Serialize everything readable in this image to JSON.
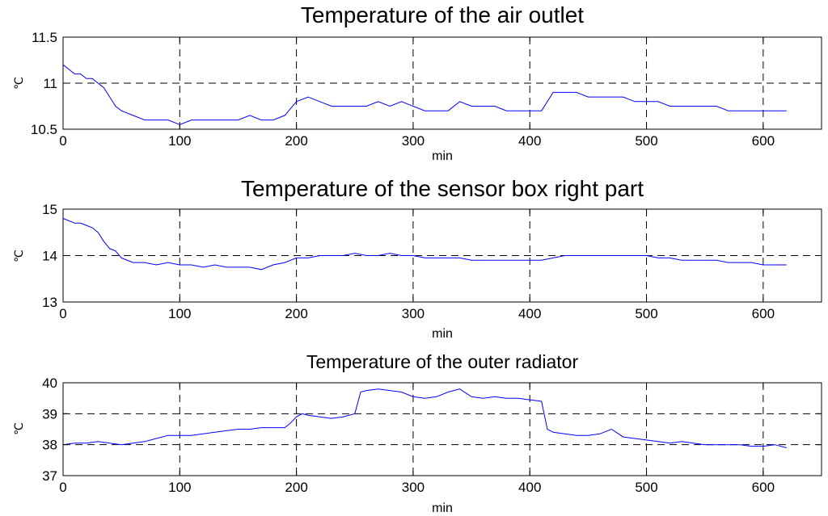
{
  "chart_data": [
    {
      "type": "line",
      "title": "Temperature of the air outlet",
      "xlabel": "min",
      "ylabel": "℃",
      "xlim": [
        0,
        650
      ],
      "ylim": [
        10.5,
        11.5
      ],
      "xticks": [
        "0",
        "100",
        "200",
        "300",
        "400",
        "500",
        "600"
      ],
      "yticks": [
        "10.5",
        "11",
        "11.5"
      ],
      "grid": true,
      "series": [
        {
          "color": "#0000ff",
          "x": [
            0,
            5,
            10,
            15,
            20,
            25,
            30,
            35,
            40,
            45,
            50,
            60,
            70,
            80,
            90,
            100,
            110,
            120,
            130,
            140,
            150,
            160,
            170,
            180,
            190,
            200,
            210,
            220,
            230,
            240,
            250,
            260,
            270,
            280,
            290,
            300,
            310,
            320,
            330,
            340,
            350,
            360,
            370,
            380,
            390,
            400,
            410,
            420,
            430,
            440,
            450,
            460,
            470,
            480,
            490,
            500,
            510,
            520,
            530,
            540,
            550,
            560,
            570,
            580,
            590,
            600,
            610,
            620
          ],
          "y": [
            11.2,
            11.15,
            11.1,
            11.1,
            11.05,
            11.05,
            11.0,
            10.95,
            10.85,
            10.75,
            10.7,
            10.65,
            10.6,
            10.6,
            10.6,
            10.55,
            10.6,
            10.6,
            10.6,
            10.6,
            10.6,
            10.65,
            10.6,
            10.6,
            10.65,
            10.8,
            10.85,
            10.8,
            10.75,
            10.75,
            10.75,
            10.75,
            10.8,
            10.75,
            10.8,
            10.75,
            10.7,
            10.7,
            10.7,
            10.8,
            10.75,
            10.75,
            10.75,
            10.7,
            10.7,
            10.7,
            10.7,
            10.9,
            10.9,
            10.9,
            10.85,
            10.85,
            10.85,
            10.85,
            10.8,
            10.8,
            10.8,
            10.75,
            10.75,
            10.75,
            10.75,
            10.75,
            10.7,
            10.7,
            10.7,
            10.7,
            10.7,
            10.7
          ]
        }
      ]
    },
    {
      "type": "line",
      "title": "Temperature of the sensor box right part",
      "xlabel": "min",
      "ylabel": "℃",
      "xlim": [
        0,
        650
      ],
      "ylim": [
        13,
        15
      ],
      "xticks": [
        "0",
        "100",
        "200",
        "300",
        "400",
        "500",
        "600"
      ],
      "yticks": [
        "13",
        "14",
        "15"
      ],
      "grid": true,
      "series": [
        {
          "color": "#0000ff",
          "x": [
            0,
            5,
            10,
            15,
            20,
            25,
            30,
            35,
            40,
            45,
            50,
            60,
            70,
            80,
            90,
            100,
            110,
            120,
            130,
            140,
            150,
            160,
            170,
            180,
            190,
            200,
            210,
            220,
            230,
            240,
            250,
            260,
            270,
            280,
            290,
            300,
            310,
            320,
            330,
            340,
            350,
            360,
            370,
            380,
            390,
            400,
            410,
            420,
            430,
            440,
            450,
            460,
            470,
            480,
            490,
            500,
            510,
            520,
            530,
            540,
            550,
            560,
            570,
            580,
            590,
            600,
            610,
            620
          ],
          "y": [
            14.8,
            14.75,
            14.7,
            14.7,
            14.65,
            14.6,
            14.5,
            14.3,
            14.15,
            14.1,
            13.95,
            13.85,
            13.85,
            13.8,
            13.85,
            13.8,
            13.8,
            13.75,
            13.8,
            13.75,
            13.75,
            13.75,
            13.7,
            13.8,
            13.85,
            13.95,
            13.95,
            14.0,
            14.0,
            14.0,
            14.05,
            14.0,
            14.0,
            14.05,
            14.0,
            14.0,
            13.95,
            13.95,
            13.95,
            13.95,
            13.9,
            13.9,
            13.9,
            13.9,
            13.9,
            13.9,
            13.9,
            13.95,
            14.0,
            14.0,
            14.0,
            14.0,
            14.0,
            14.0,
            14.0,
            14.0,
            13.95,
            13.95,
            13.9,
            13.9,
            13.9,
            13.9,
            13.85,
            13.85,
            13.85,
            13.8,
            13.8,
            13.8
          ]
        }
      ]
    },
    {
      "type": "line",
      "title": "Temperature of the outer radiator",
      "xlabel": "min",
      "ylabel": "℃",
      "xlim": [
        0,
        650
      ],
      "ylim": [
        37,
        40
      ],
      "xticks": [
        "0",
        "100",
        "200",
        "300",
        "400",
        "500",
        "600"
      ],
      "yticks": [
        "37",
        "38",
        "39",
        "40"
      ],
      "grid": true,
      "series": [
        {
          "color": "#0000ff",
          "x": [
            0,
            10,
            20,
            30,
            40,
            50,
            60,
            70,
            80,
            90,
            100,
            110,
            120,
            130,
            140,
            150,
            160,
            170,
            180,
            190,
            195,
            200,
            205,
            210,
            220,
            230,
            240,
            250,
            255,
            260,
            270,
            280,
            290,
            300,
            310,
            320,
            330,
            340,
            350,
            360,
            370,
            380,
            390,
            400,
            410,
            415,
            420,
            430,
            440,
            450,
            460,
            470,
            480,
            490,
            500,
            510,
            520,
            530,
            540,
            550,
            560,
            570,
            580,
            590,
            600,
            610,
            620
          ],
          "y": [
            38.0,
            38.05,
            38.05,
            38.1,
            38.05,
            38.0,
            38.05,
            38.1,
            38.2,
            38.3,
            38.3,
            38.3,
            38.35,
            38.4,
            38.45,
            38.5,
            38.5,
            38.55,
            38.55,
            38.55,
            38.7,
            38.9,
            39.0,
            38.95,
            38.9,
            38.85,
            38.9,
            39.0,
            39.7,
            39.75,
            39.8,
            39.75,
            39.7,
            39.55,
            39.5,
            39.55,
            39.7,
            39.8,
            39.55,
            39.5,
            39.55,
            39.5,
            39.5,
            39.45,
            39.4,
            38.5,
            38.4,
            38.35,
            38.3,
            38.3,
            38.35,
            38.5,
            38.25,
            38.2,
            38.15,
            38.1,
            38.05,
            38.1,
            38.05,
            38.0,
            38.0,
            38.0,
            38.0,
            37.95,
            37.95,
            38.0,
            37.9
          ]
        }
      ]
    }
  ]
}
